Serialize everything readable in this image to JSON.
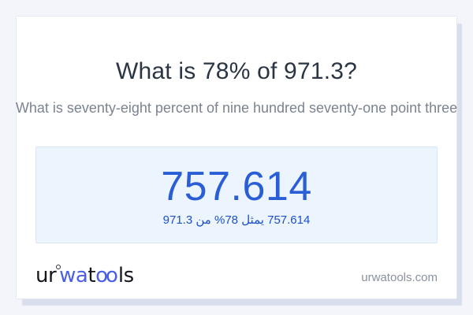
{
  "header": {
    "title": "What is 78% of 971.3?",
    "subtitle": "What is seventy-eight percent of nine hundred seventy-one point three"
  },
  "result": {
    "value": "757.614",
    "caption_rtl": "757.614 يمثل 78% من 971.3"
  },
  "footer": {
    "logo": {
      "seg1": "ur",
      "seg2": "wa",
      "seg3": "t",
      "seg4": "oo",
      "seg5": "ls"
    },
    "website": "urwatools.com"
  },
  "colors": {
    "page_background": "#f3f5fa",
    "card_background": "#ffffff",
    "card_shadow": "#d8deeb",
    "title_text": "#2b3544",
    "subtitle_text": "#7b8391",
    "answer_box_background": "#ecf4fd",
    "answer_box_border": "#d9e7f7",
    "result_value_blue": "#2a5ed6",
    "result_caption_blue": "#1d50c6",
    "logo_dark": "#15171c",
    "logo_blue": "#4a5fe8",
    "site_link_gray": "#8b919d"
  }
}
